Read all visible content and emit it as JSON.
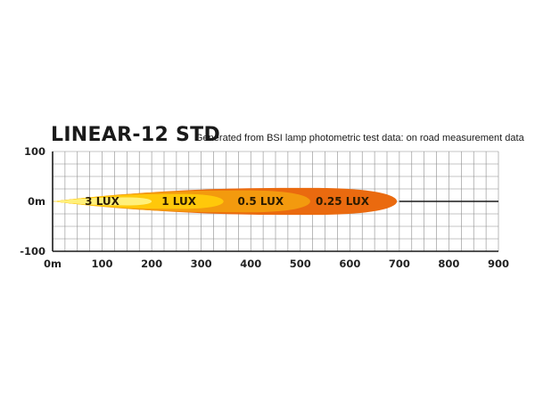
{
  "chart_data": {
    "type": "area",
    "title": "LINEAR-12 STD",
    "subtitle": "Generated from BSI lamp photometric test data: on road measurement data",
    "xlim": [
      0,
      900
    ],
    "ylim": [
      -100,
      100
    ],
    "grid": true,
    "x_ticks": [
      {
        "value": 0,
        "label": "0m"
      },
      {
        "value": 100,
        "label": "100"
      },
      {
        "value": 200,
        "label": "200"
      },
      {
        "value": 300,
        "label": "300"
      },
      {
        "value": 400,
        "label": "400"
      },
      {
        "value": 500,
        "label": "500"
      },
      {
        "value": 600,
        "label": "600"
      },
      {
        "value": 700,
        "label": "700"
      },
      {
        "value": 800,
        "label": "800"
      },
      {
        "value": 900,
        "label": "900"
      }
    ],
    "y_ticks": [
      {
        "value": 100,
        "label": "100"
      },
      {
        "value": 0,
        "label": "0m"
      },
      {
        "value": -100,
        "label": "-100"
      }
    ],
    "centerline": {
      "x_start": 700,
      "x_end": 900,
      "y": 0
    },
    "series": [
      {
        "name": "0.25 LUX",
        "max_distance": 695,
        "half_width": 27,
        "color": "#ea6a0f",
        "label_x": 585
      },
      {
        "name": "0.5 LUX",
        "max_distance": 520,
        "half_width": 22,
        "color": "#f39a0e",
        "label_x": 420
      },
      {
        "name": "1 LUX",
        "max_distance": 345,
        "half_width": 15,
        "color": "#ffc80a",
        "label_x": 255
      },
      {
        "name": "3 LUX",
        "max_distance": 200,
        "half_width": 8,
        "color": "#fff07a",
        "label_x": 100
      }
    ]
  }
}
